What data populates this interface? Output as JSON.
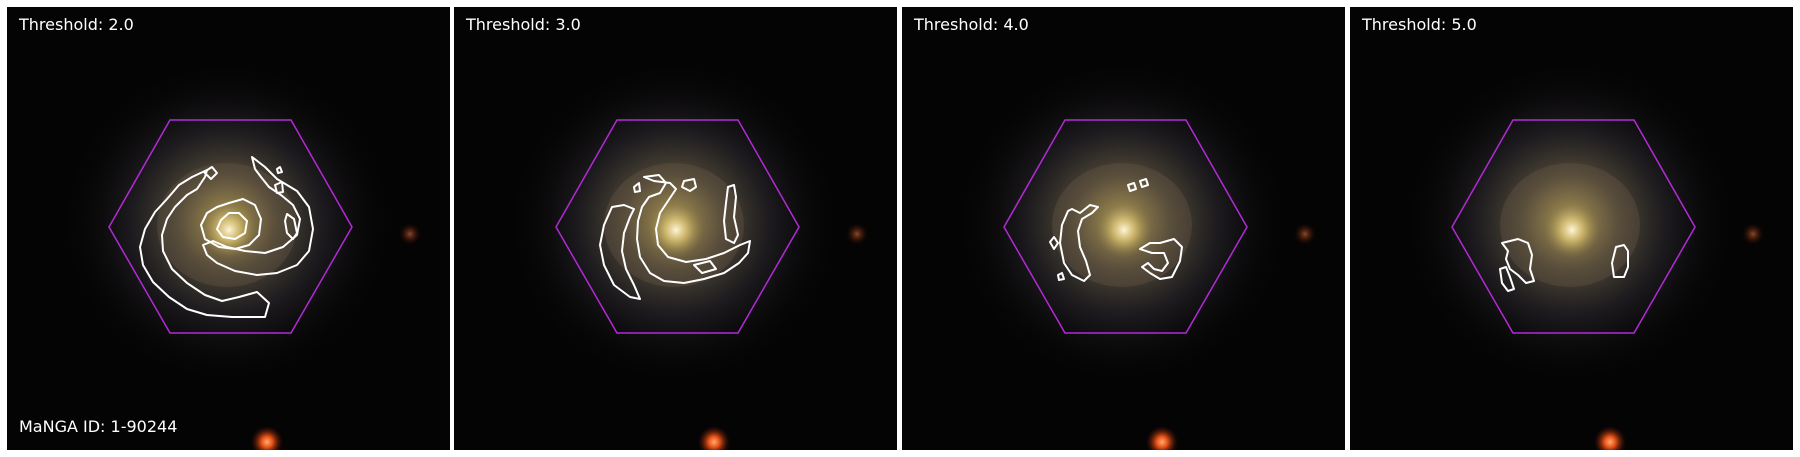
{
  "manga_id_label": "MaNGA ID: 1-90244",
  "panels": [
    {
      "threshold_label": "Threshold: 2.0"
    },
    {
      "threshold_label": "Threshold: 3.0"
    },
    {
      "threshold_label": "Threshold: 4.0"
    },
    {
      "threshold_label": "Threshold: 5.0"
    }
  ],
  "colors": {
    "background": "#050404",
    "hexagon": "#b22ad6",
    "contour": "#ffffff",
    "galaxy_core": "#f5e6a0",
    "foreground_star": "#ff5a1a"
  }
}
